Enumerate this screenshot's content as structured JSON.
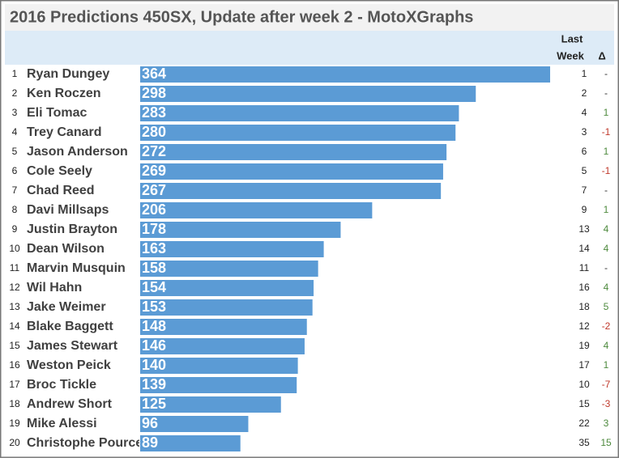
{
  "chart_data": {
    "type": "bar",
    "orientation": "horizontal",
    "title": "2016 Predictions 450SX, Update after week 2 - MotoXGraphs",
    "column_headers": {
      "last_week": [
        "Last",
        "Week"
      ],
      "change": "Δ"
    },
    "color": "#5b9bd5",
    "ranks": [
      1,
      2,
      3,
      4,
      5,
      6,
      7,
      8,
      9,
      10,
      11,
      12,
      13,
      14,
      15,
      16,
      17,
      18,
      19,
      20
    ],
    "categories": [
      "Ryan Dungey",
      "Ken Roczen",
      "Eli Tomac",
      "Trey Canard",
      "Jason Anderson",
      "Cole Seely",
      "Chad Reed",
      "Davi Millsaps",
      "Justin Brayton",
      "Dean Wilson",
      "Marvin Musquin",
      "Wil Hahn",
      "Jake Weimer",
      "Blake Baggett",
      "James Stewart",
      "Weston Peick",
      "Broc Tickle",
      "Andrew Short",
      "Mike Alessi",
      "Christophe Pourcel"
    ],
    "values": [
      364,
      298,
      283,
      280,
      272,
      269,
      267,
      206,
      178,
      163,
      158,
      154,
      153,
      148,
      146,
      140,
      139,
      125,
      96,
      89
    ],
    "last_week": [
      1,
      2,
      4,
      3,
      6,
      5,
      7,
      9,
      13,
      14,
      11,
      16,
      18,
      12,
      19,
      17,
      10,
      15,
      22,
      35
    ],
    "change": [
      0,
      0,
      1,
      -1,
      1,
      -1,
      0,
      1,
      4,
      4,
      0,
      4,
      5,
      -2,
      4,
      1,
      -7,
      -3,
      3,
      15
    ],
    "change_labels": [
      "-",
      "-",
      "1",
      "-1",
      "1",
      "-1",
      "-",
      "1",
      "4",
      "4",
      "-",
      "4",
      "5",
      "-2",
      "4",
      "1",
      "-7",
      "-3",
      "3",
      "15"
    ],
    "change_colors": {
      "up": "#4e8a3e",
      "down": "#c0392b",
      "same": "#333333"
    }
  }
}
